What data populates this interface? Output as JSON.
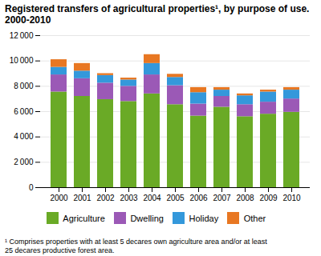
{
  "chart_data": {
    "type": "bar",
    "stacked": true,
    "title": "Registered transfers of agricultural properties¹, by purpose of use.\n2000-2010",
    "footnote": "¹ Comprises properties with at least 5 decares own agriculture area and/or at least\n25 decares productive forest area.",
    "categories": [
      "2000",
      "2001",
      "2002",
      "2003",
      "2004",
      "2005",
      "2006",
      "2007",
      "2008",
      "2009",
      "2010"
    ],
    "series": [
      {
        "name": "Agriculture",
        "color": "#6aaa26",
        "values": [
          7550,
          7200,
          6950,
          6800,
          7400,
          6550,
          5650,
          6350,
          5600,
          5800,
          5950
        ]
      },
      {
        "name": "Dwelling",
        "color": "#9b59b6",
        "values": [
          1350,
          1400,
          1300,
          1200,
          1500,
          1500,
          950,
          850,
          950,
          950,
          1050
        ]
      },
      {
        "name": "Holiday",
        "color": "#3498db",
        "values": [
          600,
          600,
          600,
          500,
          900,
          650,
          900,
          500,
          700,
          800,
          700
        ]
      },
      {
        "name": "Other",
        "color": "#e87722",
        "values": [
          600,
          600,
          150,
          150,
          700,
          250,
          400,
          200,
          150,
          150,
          200
        ]
      }
    ],
    "ylim": [
      0,
      12000
    ],
    "yticks": [
      0,
      {
        "value": 2000,
        "label": "2 000"
      },
      {
        "value": 4000,
        "label": "4 000"
      },
      {
        "value": 6000,
        "label": "6 000"
      },
      {
        "value": 8000,
        "label": "8 000"
      },
      {
        "value": 10000,
        "label": "10 000"
      },
      {
        "value": 12000,
        "label": "12 000"
      }
    ],
    "grid": true,
    "legend": "bottom"
  }
}
